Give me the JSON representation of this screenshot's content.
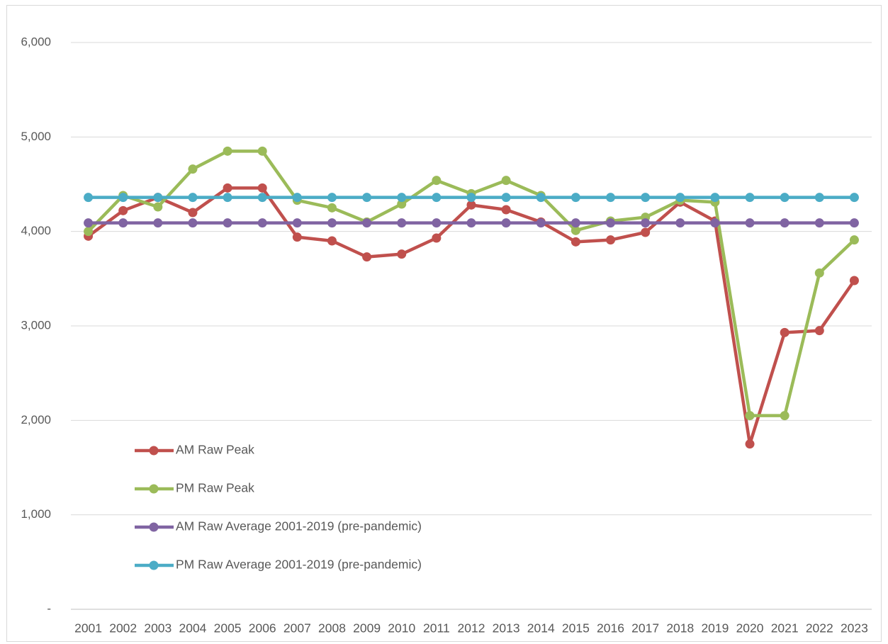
{
  "chart_data": {
    "type": "line",
    "categories": [
      "2001",
      "2002",
      "2003",
      "2004",
      "2005",
      "2006",
      "2007",
      "2008",
      "2009",
      "2010",
      "2011",
      "2012",
      "2013",
      "2014",
      "2015",
      "2016",
      "2017",
      "2018",
      "2019",
      "2020",
      "2021",
      "2022",
      "2023"
    ],
    "series": [
      {
        "name": "AM Raw Peak",
        "color": "#c0504d",
        "values": [
          3950,
          4220,
          4360,
          4200,
          4460,
          4460,
          3940,
          3900,
          3730,
          3760,
          3930,
          4280,
          4230,
          4100,
          3890,
          3910,
          3990,
          4310,
          4110,
          1750,
          2930,
          2950,
          3480
        ]
      },
      {
        "name": "PM Raw Peak",
        "color": "#9bbb59",
        "values": [
          4000,
          4380,
          4260,
          4660,
          4850,
          4850,
          4330,
          4250,
          4100,
          4290,
          4540,
          4400,
          4540,
          4380,
          4010,
          4110,
          4150,
          4330,
          4310,
          2050,
          2050,
          3560,
          3910
        ]
      },
      {
        "name": "AM Raw Average 2001-2019 (pre-pandemic)",
        "color": "#8064a2",
        "values": [
          4090,
          4090,
          4090,
          4090,
          4090,
          4090,
          4090,
          4090,
          4090,
          4090,
          4090,
          4090,
          4090,
          4090,
          4090,
          4090,
          4090,
          4090,
          4090,
          4090,
          4090,
          4090,
          4090
        ]
      },
      {
        "name": "PM Raw Average 2001-2019 (pre-pandemic)",
        "color": "#4bacc6",
        "values": [
          4360,
          4360,
          4360,
          4360,
          4360,
          4360,
          4360,
          4360,
          4360,
          4360,
          4360,
          4360,
          4360,
          4360,
          4360,
          4360,
          4360,
          4360,
          4360,
          4360,
          4360,
          4360,
          4360
        ]
      }
    ],
    "ylim": [
      0,
      6000
    ],
    "yticks": [
      {
        "value": 0,
        "label": "-"
      },
      {
        "value": 1000,
        "label": "1,000"
      },
      {
        "value": 2000,
        "label": "2,000"
      },
      {
        "value": 3000,
        "label": "3,000"
      },
      {
        "value": 4000,
        "label": "4,000"
      },
      {
        "value": 5000,
        "label": "5,000"
      },
      {
        "value": 6000,
        "label": "6,000"
      }
    ],
    "grid": true,
    "legend": "lower left"
  }
}
